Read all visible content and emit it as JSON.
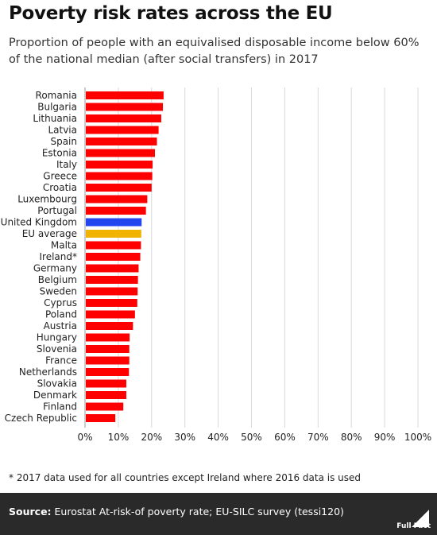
{
  "header": {
    "title": "Poverty risk rates across the EU",
    "subtitle": "Proportion of people with an equivalised disposable income below 60% of the national median (after social transfers) in 2017"
  },
  "footnote": "* 2017 data used for all countries except Ireland where 2016 data is used",
  "footer": {
    "source_label": "Source:",
    "source_text": "Eurostat At-risk-of poverty rate; EU-SILC survey (tessi120)",
    "logo_text": "Full Fact"
  },
  "colors": {
    "default_bar": "#ff0000",
    "uk_bar": "#2446ee",
    "eu_bar": "#f0b400",
    "grid": "#d9d9d9",
    "footer_bg": "#2a2a2a"
  },
  "chart_data": {
    "type": "bar",
    "orientation": "horizontal",
    "categories": [
      "Romania",
      "Bulgaria",
      "Lithuania",
      "Latvia",
      "Spain",
      "Estonia",
      "Italy",
      "Greece",
      "Croatia",
      "Luxembourg",
      "Portugal",
      "United Kingdom",
      "EU average",
      "Malta",
      "Ireland*",
      "Germany",
      "Belgium",
      "Sweden",
      "Cyprus",
      "Poland",
      "Austria",
      "Hungary",
      "Slovenia",
      "France",
      "Netherlands",
      "Slovakia",
      "Denmark",
      "Finland",
      "Czech Republic"
    ],
    "values": [
      23.6,
      23.4,
      22.9,
      22.1,
      21.6,
      21.0,
      20.3,
      20.2,
      20.0,
      18.7,
      18.3,
      17.0,
      16.9,
      16.8,
      16.6,
      16.1,
      15.9,
      15.8,
      15.7,
      15.0,
      14.4,
      13.4,
      13.3,
      13.3,
      13.2,
      12.4,
      12.4,
      11.5,
      9.1
    ],
    "highlight": {
      "United Kingdom": "uk_bar",
      "EU average": "eu_bar"
    },
    "xlim": [
      0,
      100
    ],
    "x_ticks": [
      "0%",
      "10%",
      "20%",
      "30%",
      "40%",
      "50%",
      "60%",
      "70%",
      "80%",
      "90%",
      "100%"
    ],
    "grid": true,
    "xlabel": "",
    "ylabel": ""
  }
}
